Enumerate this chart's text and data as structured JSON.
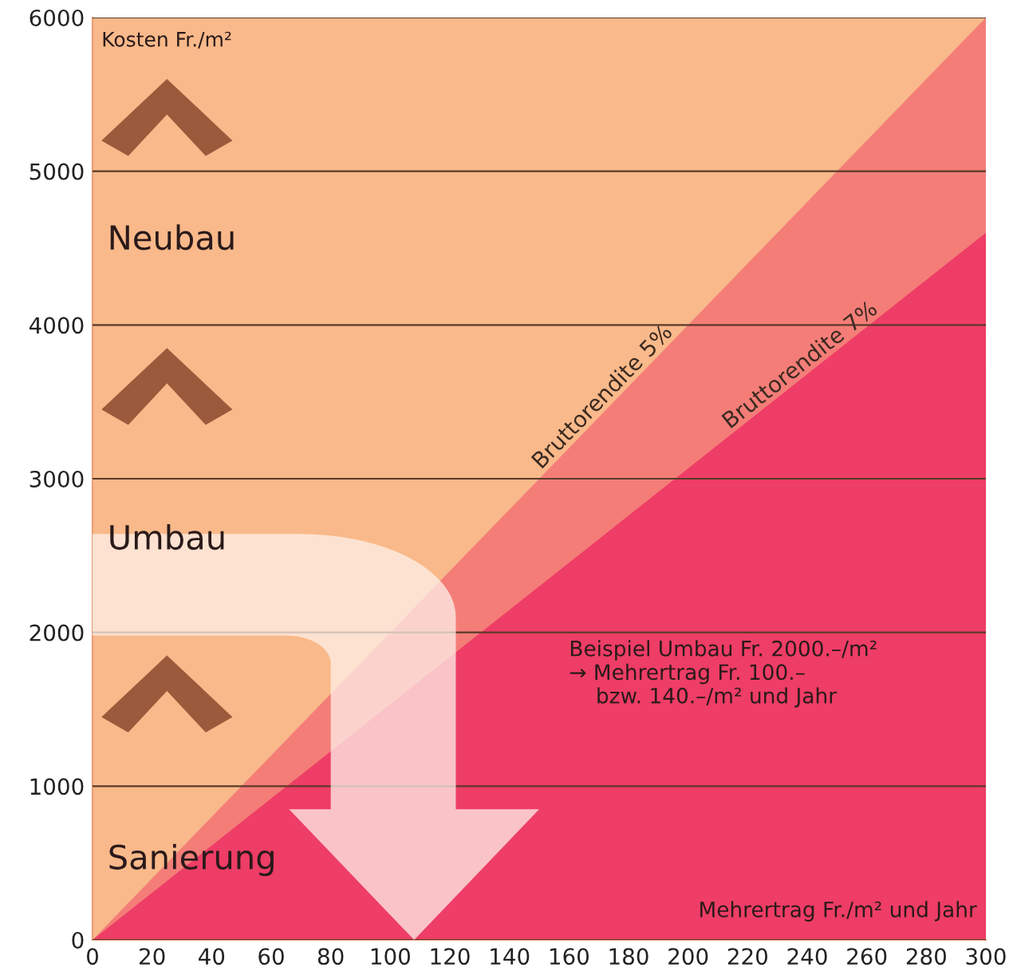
{
  "chart_data": {
    "type": "area",
    "xlabel": "Mehrertrag Fr./m² und Jahr",
    "ylabel": "Kosten Fr./m²",
    "series": [
      {
        "name": "Bruttorendite 5%",
        "color": "#f47d78",
        "values": [
          0,
          6000
        ]
      },
      {
        "name": "Bruttorendite 7%",
        "color": "#ee3d66",
        "values": [
          0,
          4600
        ]
      }
    ],
    "x": [
      0,
      300
    ],
    "xlim": [
      0,
      300
    ],
    "ylim": [
      0,
      6000
    ],
    "xticks": [
      0,
      20,
      40,
      60,
      80,
      100,
      120,
      140,
      160,
      180,
      200,
      220,
      240,
      260,
      280,
      300
    ],
    "yticks": [
      0,
      1000,
      2000,
      3000,
      4000,
      5000,
      6000
    ],
    "grid": "y",
    "annotations": [
      "Neubau",
      "Umbau",
      "Sanierung",
      "Beispiel Umbau Fr. 2000.–/m²\n→ Mehrertrag Fr. 100.–\n    bzw. 140.–/m² und Jahr"
    ]
  }
}
